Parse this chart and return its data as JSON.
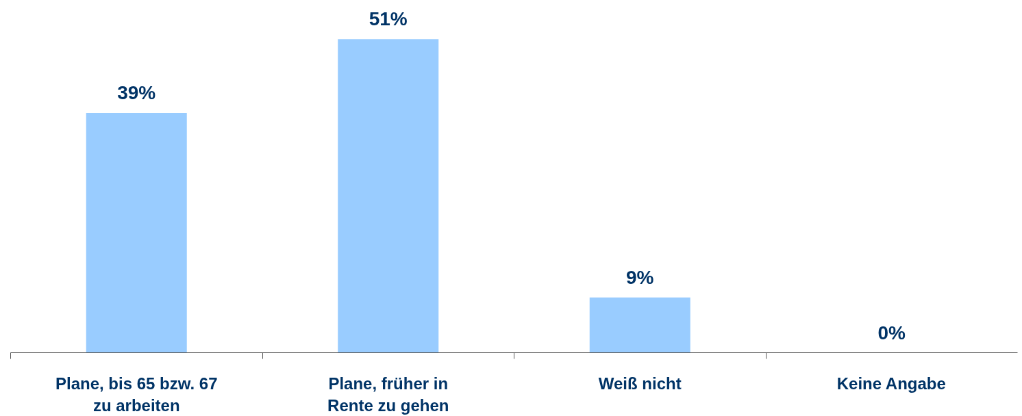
{
  "chart_data": {
    "type": "bar",
    "categories": [
      "Plane, bis 65 bzw. 67 zu arbeiten",
      "Plane, früher in Rente zu gehen",
      "Weiß nicht",
      "Keine Angabe"
    ],
    "values": [
      39,
      51,
      9,
      0
    ],
    "value_labels": [
      "39%",
      "51%",
      "9%",
      "0%"
    ],
    "color": "#99ccff",
    "grid": false
  }
}
